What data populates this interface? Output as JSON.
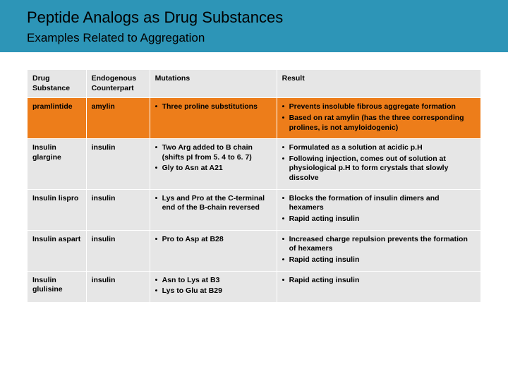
{
  "header": {
    "title": "Peptide Analogs as Drug Substances",
    "subtitle": "Examples Related to Aggregation",
    "band_color": "#2d95b7"
  },
  "table": {
    "columns": [
      {
        "key": "drug",
        "label": "Drug Substance"
      },
      {
        "key": "endo",
        "label": "Endogenous Counterpart"
      },
      {
        "key": "mut",
        "label": "Mutations"
      },
      {
        "key": "result",
        "label": "Result"
      }
    ],
    "col_widths_pct": [
      13,
      14,
      28,
      45
    ],
    "header_bg": "#e6e6e6",
    "row_bg_normal": "#e6e6e6",
    "row_bg_highlight": "#ed7d1a",
    "border_color": "#ffffff",
    "font_size_pt": 8,
    "rows": [
      {
        "highlight": true,
        "drug": "pramlintide",
        "endo": "amylin",
        "mut": [
          "Three proline substitutions"
        ],
        "result": [
          "Prevents insoluble fibrous aggregate formation",
          "Based on rat amylin (has the three corresponding prolines, is not amyloidogenic)"
        ]
      },
      {
        "highlight": false,
        "drug": "Insulin glargine",
        "endo": "insulin",
        "mut": [
          "Two Arg added to B chain (shifts pI from 5. 4 to 6. 7)",
          "Gly to Asn at A21"
        ],
        "result": [
          "Formulated as a solution at acidic p.H",
          "Following injection, comes out of solution at physiological p.H to form crystals that slowly dissolve"
        ]
      },
      {
        "highlight": false,
        "drug": "Insulin lispro",
        "endo": "insulin",
        "mut": [
          "Lys and Pro at the C-terminal end of the B-chain reversed"
        ],
        "result": [
          "Blocks the formation of insulin dimers and hexamers",
          "Rapid acting insulin"
        ]
      },
      {
        "highlight": false,
        "drug": "Insulin aspart",
        "endo": "insulin",
        "mut": [
          "Pro to Asp at B28"
        ],
        "result": [
          "Increased charge repulsion prevents the formation of hexamers",
          "Rapid acting insulin"
        ]
      },
      {
        "highlight": false,
        "drug": "Insulin glulisine",
        "endo": "insulin",
        "mut": [
          "Asn to Lys at B3",
          "Lys to Glu at B29"
        ],
        "result": [
          "Rapid acting insulin"
        ]
      }
    ]
  }
}
